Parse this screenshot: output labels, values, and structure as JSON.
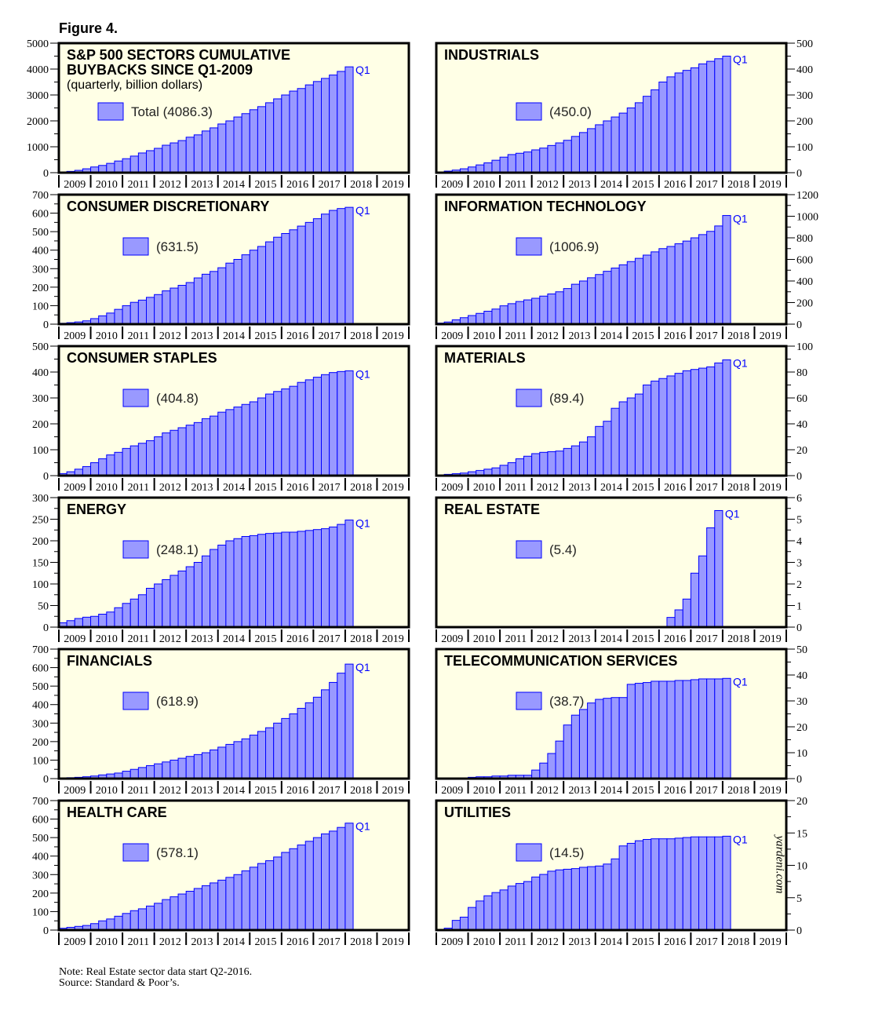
{
  "figure_title": "Figure 4.",
  "note": "Note: Real Estate sector data start Q2-2016.",
  "source": "Source: Standard & Poor’s.",
  "brand": "yardeni.com",
  "years": [
    "2009",
    "2010",
    "2011",
    "2012",
    "2013",
    "2014",
    "2015",
    "2016",
    "2017",
    "2018",
    "2019"
  ],
  "colors": {
    "bar_fill": "#9999ff",
    "bar_stroke": "#0000ff",
    "panel_bg": "#ffffe6",
    "end_label": "#0000ff"
  },
  "chart_data": [
    {
      "type": "bar",
      "title": "S&P 500 SECTORS CUMULATIVE",
      "title_line2": "BUYBACKS SINCE Q1-2009",
      "subtitle": "(quarterly, billion dollars)",
      "legend": "Total (4086.3)",
      "end_label": "Q1",
      "axis_side": "left",
      "ylim": [
        0,
        5000
      ],
      "yticks": [
        "0",
        "1000",
        "2000",
        "3000",
        "4000",
        "5000"
      ],
      "x_start": "Q1-2009",
      "values": [
        30,
        50,
        90,
        150,
        220,
        280,
        360,
        450,
        540,
        640,
        760,
        850,
        940,
        1060,
        1150,
        1240,
        1370,
        1460,
        1610,
        1730,
        1880,
        2000,
        2150,
        2280,
        2430,
        2550,
        2700,
        2850,
        3000,
        3150,
        3250,
        3390,
        3520,
        3640,
        3770,
        3910,
        4086.3
      ]
    },
    {
      "type": "bar",
      "title": "INDUSTRIALS",
      "legend": "(450.0)",
      "end_label": "Q1",
      "axis_side": "right",
      "ylim": [
        0,
        500
      ],
      "yticks": [
        "0",
        "100",
        "200",
        "300",
        "400",
        "500"
      ],
      "x_start": "Q1-2009",
      "values": [
        3,
        6,
        10,
        15,
        22,
        30,
        38,
        48,
        60,
        70,
        75,
        80,
        88,
        95,
        105,
        115,
        125,
        140,
        155,
        170,
        185,
        200,
        215,
        230,
        250,
        270,
        295,
        320,
        350,
        370,
        385,
        395,
        405,
        420,
        430,
        440,
        450.0
      ]
    },
    {
      "type": "bar",
      "title": "CONSUMER DISCRETIONARY",
      "legend": "(631.5)",
      "end_label": "Q1",
      "axis_side": "left",
      "ylim": [
        0,
        700
      ],
      "yticks": [
        "0",
        "100",
        "200",
        "300",
        "400",
        "500",
        "600",
        "700"
      ],
      "x_start": "Q1-2009",
      "values": [
        5,
        8,
        12,
        18,
        30,
        45,
        60,
        80,
        100,
        118,
        130,
        145,
        160,
        180,
        195,
        210,
        225,
        250,
        270,
        285,
        305,
        330,
        350,
        375,
        400,
        420,
        445,
        470,
        490,
        510,
        530,
        550,
        570,
        595,
        615,
        625,
        631.5
      ]
    },
    {
      "type": "bar",
      "title": "INFORMATION TECHNOLOGY",
      "legend": "(1006.9)",
      "end_label": "Q1",
      "axis_side": "right",
      "ylim": [
        0,
        1200
      ],
      "yticks": [
        "0",
        "200",
        "400",
        "600",
        "800",
        "1000",
        "1200"
      ],
      "x_start": "Q1-2009",
      "values": [
        10,
        20,
        40,
        60,
        80,
        100,
        120,
        140,
        170,
        190,
        210,
        225,
        240,
        260,
        280,
        300,
        330,
        370,
        400,
        430,
        460,
        490,
        520,
        550,
        580,
        610,
        640,
        670,
        700,
        720,
        745,
        770,
        800,
        830,
        860,
        910,
        1006.9
      ]
    },
    {
      "type": "bar",
      "title": "CONSUMER STAPLES",
      "legend": "(404.8)",
      "end_label": "Q1",
      "axis_side": "left",
      "ylim": [
        0,
        500
      ],
      "yticks": [
        "0",
        "100",
        "200",
        "300",
        "400",
        "500"
      ],
      "x_start": "Q1-2009",
      "values": [
        8,
        15,
        25,
        35,
        50,
        65,
        80,
        90,
        105,
        115,
        125,
        135,
        150,
        165,
        175,
        185,
        195,
        205,
        220,
        230,
        245,
        255,
        265,
        275,
        285,
        300,
        315,
        325,
        335,
        345,
        360,
        370,
        380,
        390,
        398,
        402,
        404.8
      ]
    },
    {
      "type": "bar",
      "title": "MATERIALS",
      "legend": "(89.4)",
      "end_label": "Q1",
      "axis_side": "right",
      "ylim": [
        0,
        100
      ],
      "yticks": [
        "0",
        "20",
        "40",
        "60",
        "80",
        "100"
      ],
      "x_start": "Q1-2009",
      "values": [
        0.5,
        1,
        1.5,
        2,
        3,
        4,
        5,
        6,
        8,
        10,
        13,
        15,
        17,
        18,
        18.5,
        19,
        21,
        23,
        26,
        30,
        38,
        42,
        52,
        57,
        60,
        63,
        70,
        73,
        75,
        77,
        79,
        81,
        82,
        83,
        84,
        87,
        89.4
      ]
    },
    {
      "type": "bar",
      "title": "ENERGY",
      "legend": "(248.1)",
      "end_label": "Q1",
      "axis_side": "left",
      "ylim": [
        0,
        300
      ],
      "yticks": [
        "0",
        "50",
        "100",
        "150",
        "200",
        "250",
        "300"
      ],
      "x_start": "Q1-2009",
      "values": [
        10,
        15,
        20,
        23,
        25,
        30,
        35,
        45,
        55,
        65,
        75,
        90,
        100,
        110,
        120,
        130,
        140,
        150,
        165,
        180,
        190,
        200,
        205,
        210,
        212,
        215,
        217,
        218,
        220,
        220,
        222,
        224,
        226,
        228,
        232,
        238,
        248.1
      ]
    },
    {
      "type": "bar",
      "title": "REAL ESTATE",
      "legend": "(5.4)",
      "end_label": "Q1",
      "axis_side": "right",
      "ylim": [
        0,
        6
      ],
      "yticks": [
        "0",
        "1",
        "2",
        "3",
        "4",
        "5",
        "6"
      ],
      "x_start": "Q1-2009",
      "values": [
        0,
        0,
        0,
        0,
        0,
        0,
        0,
        0,
        0,
        0,
        0,
        0,
        0,
        0,
        0,
        0,
        0,
        0,
        0,
        0,
        0,
        0,
        0,
        0,
        0,
        0,
        0,
        0,
        0,
        0.45,
        0.8,
        1.3,
        2.5,
        3.3,
        4.6,
        5.4
      ]
    },
    {
      "type": "bar",
      "title": "FINANCIALS",
      "legend": "(618.9)",
      "end_label": "Q1",
      "axis_side": "left",
      "ylim": [
        0,
        700
      ],
      "yticks": [
        "0",
        "100",
        "200",
        "300",
        "400",
        "500",
        "600",
        "700"
      ],
      "x_start": "Q1-2009",
      "values": [
        3,
        5,
        7,
        10,
        14,
        20,
        25,
        30,
        40,
        50,
        60,
        70,
        80,
        90,
        100,
        110,
        120,
        130,
        140,
        155,
        170,
        185,
        200,
        215,
        235,
        255,
        275,
        300,
        325,
        350,
        380,
        410,
        440,
        480,
        520,
        570,
        618.9
      ]
    },
    {
      "type": "bar",
      "title": "TELECOMMUNICATION SERVICES",
      "legend": "(38.7)",
      "end_label": "Q1",
      "axis_side": "right",
      "ylim": [
        0,
        50
      ],
      "yticks": [
        "0",
        "10",
        "20",
        "30",
        "40",
        "50"
      ],
      "x_start": "Q1-2009",
      "values": [
        0.1,
        0.3,
        0.3,
        0.3,
        0.5,
        0.7,
        0.7,
        1.0,
        1.0,
        1.3,
        1.3,
        1.3,
        3.3,
        6.0,
        9.7,
        14.5,
        20.7,
        24.5,
        26.7,
        29.2,
        30.6,
        31.0,
        31.3,
        31.3,
        36.4,
        36.8,
        37.1,
        37.6,
        37.6,
        37.6,
        37.9,
        37.9,
        38.2,
        38.5,
        38.5,
        38.5,
        38.7
      ]
    },
    {
      "type": "bar",
      "title": "HEALTH CARE",
      "legend": "(578.1)",
      "end_label": "Q1",
      "axis_side": "left",
      "ylim": [
        0,
        700
      ],
      "yticks": [
        "0",
        "100",
        "200",
        "300",
        "400",
        "500",
        "600",
        "700"
      ],
      "x_start": "Q1-2009",
      "values": [
        10,
        15,
        20,
        25,
        35,
        50,
        60,
        75,
        90,
        105,
        115,
        130,
        145,
        165,
        180,
        195,
        210,
        225,
        240,
        255,
        270,
        285,
        300,
        320,
        340,
        360,
        375,
        395,
        420,
        440,
        460,
        480,
        500,
        520,
        535,
        555,
        578.1
      ]
    },
    {
      "type": "bar",
      "title": "UTILITIES",
      "legend": "(14.5)",
      "end_label": "Q1",
      "axis_side": "right",
      "ylim": [
        0,
        20
      ],
      "yticks": [
        "0",
        "5",
        "10",
        "15",
        "20"
      ],
      "x_start": "Q1-2009",
      "values": [
        0,
        0.3,
        1.5,
        2,
        3.5,
        4.5,
        5.3,
        5.8,
        6.2,
        6.8,
        7.2,
        7.5,
        8.2,
        8.6,
        9.1,
        9.3,
        9.4,
        9.5,
        9.7,
        9.8,
        9.9,
        10.2,
        11,
        13,
        13.4,
        13.8,
        14,
        14.1,
        14.1,
        14.1,
        14.2,
        14.3,
        14.4,
        14.4,
        14.4,
        14.4,
        14.5
      ]
    }
  ]
}
